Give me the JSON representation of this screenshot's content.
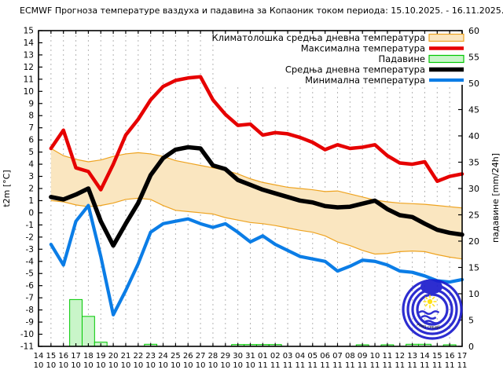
{
  "title": "ECMWF Прогноза температуре ваздуха и падавина за Копаоник током периода: 15.10.2025. - 16.11.2025.",
  "left_axis": {
    "label": "t2m [°C]",
    "min": -11,
    "max": 15,
    "tick_step": 1
  },
  "right_axis": {
    "label": "падавине [mm/24h]",
    "min": 0,
    "max": 60,
    "tick_step": 5
  },
  "x_axis": {
    "days": [
      "14",
      "15",
      "16",
      "17",
      "18",
      "19",
      "20",
      "21",
      "22",
      "23",
      "24",
      "25",
      "26",
      "27",
      "28",
      "29",
      "30",
      "31",
      "01",
      "02",
      "03",
      "04",
      "05",
      "06",
      "07",
      "08",
      "09",
      "10",
      "11",
      "12",
      "13",
      "14",
      "15",
      "16",
      "17"
    ],
    "months": [
      "10",
      "10",
      "10",
      "10",
      "10",
      "10",
      "10",
      "10",
      "10",
      "10",
      "10",
      "10",
      "10",
      "10",
      "10",
      "10",
      "10",
      "10",
      "11",
      "11",
      "11",
      "11",
      "11",
      "11",
      "11",
      "11",
      "11",
      "11",
      "11",
      "11",
      "11",
      "11",
      "11",
      "11",
      "11"
    ]
  },
  "legend": {
    "items": [
      {
        "label": "Климатолошка средња дневна температура",
        "swatch": "band"
      },
      {
        "label": "Максимална температура",
        "swatch": "line",
        "series": "max"
      },
      {
        "label": "Падавине",
        "swatch": "box"
      },
      {
        "label": "Средња дневна температура",
        "swatch": "line",
        "series": "mean"
      },
      {
        "label": "Минимална температура",
        "swatch": "line",
        "series": "min"
      }
    ]
  },
  "logo": {
    "text": "РХМЗ СРБИЈЕ"
  },
  "colors": {
    "max": "#e60000",
    "mean": "#000000",
    "min": "#0b7de6",
    "band_fill": "#fae6c0",
    "band_edge": "#eea320",
    "precip_fill": "#c9f5c9",
    "precip_edge": "#00c800",
    "grid": "#b4b4b4",
    "frame": "#000000",
    "logo_blue": "#1c1ccd",
    "sun_yellow": "#ffdf00"
  },
  "chart_data": {
    "type": "combo-line-bar-band",
    "title": "ECMWF Прогноза температуре ваздуха и падавина за Копаоник током периода: 15.10.2025. - 16.11.2025.",
    "xlabel": "",
    "ylabel_left": "t2m [°C]",
    "ylabel_right": "падавине [mm/24h]",
    "ylim_left": [
      -11,
      15
    ],
    "ylim_right": [
      0,
      60
    ],
    "x_range_days": [
      "14.10",
      "17.11"
    ],
    "grid": "vertical-dashed-daily",
    "legend_position": "top-right-inside",
    "dates": [
      "15.10",
      "16.10",
      "17.10",
      "18.10",
      "19.10",
      "20.10",
      "21.10",
      "22.10",
      "23.10",
      "24.10",
      "25.10",
      "26.10",
      "27.10",
      "28.10",
      "29.10",
      "30.10",
      "31.10",
      "01.11",
      "02.11",
      "03.11",
      "04.11",
      "05.11",
      "06.11",
      "07.11",
      "08.11",
      "09.11",
      "10.11",
      "11.11",
      "12.11",
      "13.11",
      "14.11",
      "15.11",
      "16.11",
      "17.11"
    ],
    "series": [
      {
        "name": "Климатолошка средња дневна температура",
        "type": "band",
        "axis": "left",
        "upper": [
          5.3,
          4.7,
          4.4,
          4.2,
          4.35,
          4.65,
          4.85,
          4.95,
          4.85,
          4.65,
          4.3,
          4.1,
          3.9,
          3.7,
          3.5,
          3.2,
          2.8,
          2.5,
          2.3,
          2.1,
          2.0,
          1.9,
          1.75,
          1.8,
          1.55,
          1.3,
          1.05,
          0.9,
          0.8,
          0.75,
          0.7,
          0.6,
          0.5,
          0.4
        ],
        "lower": [
          1.0,
          0.9,
          0.65,
          0.5,
          0.6,
          0.8,
          1.1,
          1.2,
          1.1,
          0.6,
          0.2,
          0.1,
          0.0,
          -0.1,
          -0.4,
          -0.6,
          -0.8,
          -0.9,
          -1.05,
          -1.25,
          -1.45,
          -1.6,
          -1.9,
          -2.4,
          -2.7,
          -3.1,
          -3.4,
          -3.35,
          -3.2,
          -3.15,
          -3.2,
          -3.45,
          -3.65,
          -3.8
        ]
      },
      {
        "name": "Максимална температура",
        "type": "line",
        "axis": "left",
        "key": "max",
        "values": [
          5.3,
          6.8,
          3.7,
          3.4,
          1.9,
          4.0,
          6.4,
          7.7,
          9.3,
          10.4,
          10.9,
          11.1,
          11.2,
          9.3,
          8.1,
          7.2,
          7.3,
          6.4,
          6.6,
          6.5,
          6.2,
          5.8,
          5.2,
          5.6,
          5.3,
          5.4,
          5.6,
          4.7,
          4.1,
          4.0,
          4.2,
          2.6,
          3.0,
          3.2
        ]
      },
      {
        "name": "Падавине",
        "type": "bar",
        "axis": "right",
        "key": "precip",
        "values": [
          0,
          0,
          8.9,
          5.7,
          0.8,
          0,
          0,
          0,
          0.4,
          0,
          0,
          0,
          0,
          0,
          0,
          0.35,
          0.35,
          0.35,
          0.35,
          0,
          0,
          0,
          0,
          0,
          0,
          0.3,
          0,
          0.3,
          0,
          0.4,
          0.4,
          0,
          0.3,
          0
        ]
      },
      {
        "name": "Средња дневна температура",
        "type": "line",
        "axis": "left",
        "key": "mean",
        "values": [
          1.3,
          1.1,
          1.5,
          2.0,
          -0.7,
          -2.7,
          -0.9,
          0.8,
          3.1,
          4.5,
          5.2,
          5.4,
          5.3,
          3.9,
          3.6,
          2.7,
          2.3,
          1.9,
          1.6,
          1.3,
          1.0,
          0.85,
          0.55,
          0.45,
          0.5,
          0.75,
          1.0,
          0.3,
          -0.2,
          -0.35,
          -0.9,
          -1.4,
          -1.65,
          -1.8
        ]
      },
      {
        "name": "Минимална температура",
        "type": "line",
        "axis": "left",
        "key": "min",
        "values": [
          -2.6,
          -4.3,
          -0.7,
          0.6,
          -3.6,
          -8.4,
          -6.4,
          -4.2,
          -1.6,
          -0.9,
          -0.7,
          -0.5,
          -0.9,
          -1.2,
          -0.9,
          -1.6,
          -2.4,
          -1.9,
          -2.6,
          -3.1,
          -3.6,
          -3.8,
          -4.0,
          -4.8,
          -4.4,
          -3.9,
          -4.0,
          -4.3,
          -4.8,
          -4.9,
          -5.2,
          -5.6,
          -5.7,
          -5.5
        ]
      }
    ]
  }
}
